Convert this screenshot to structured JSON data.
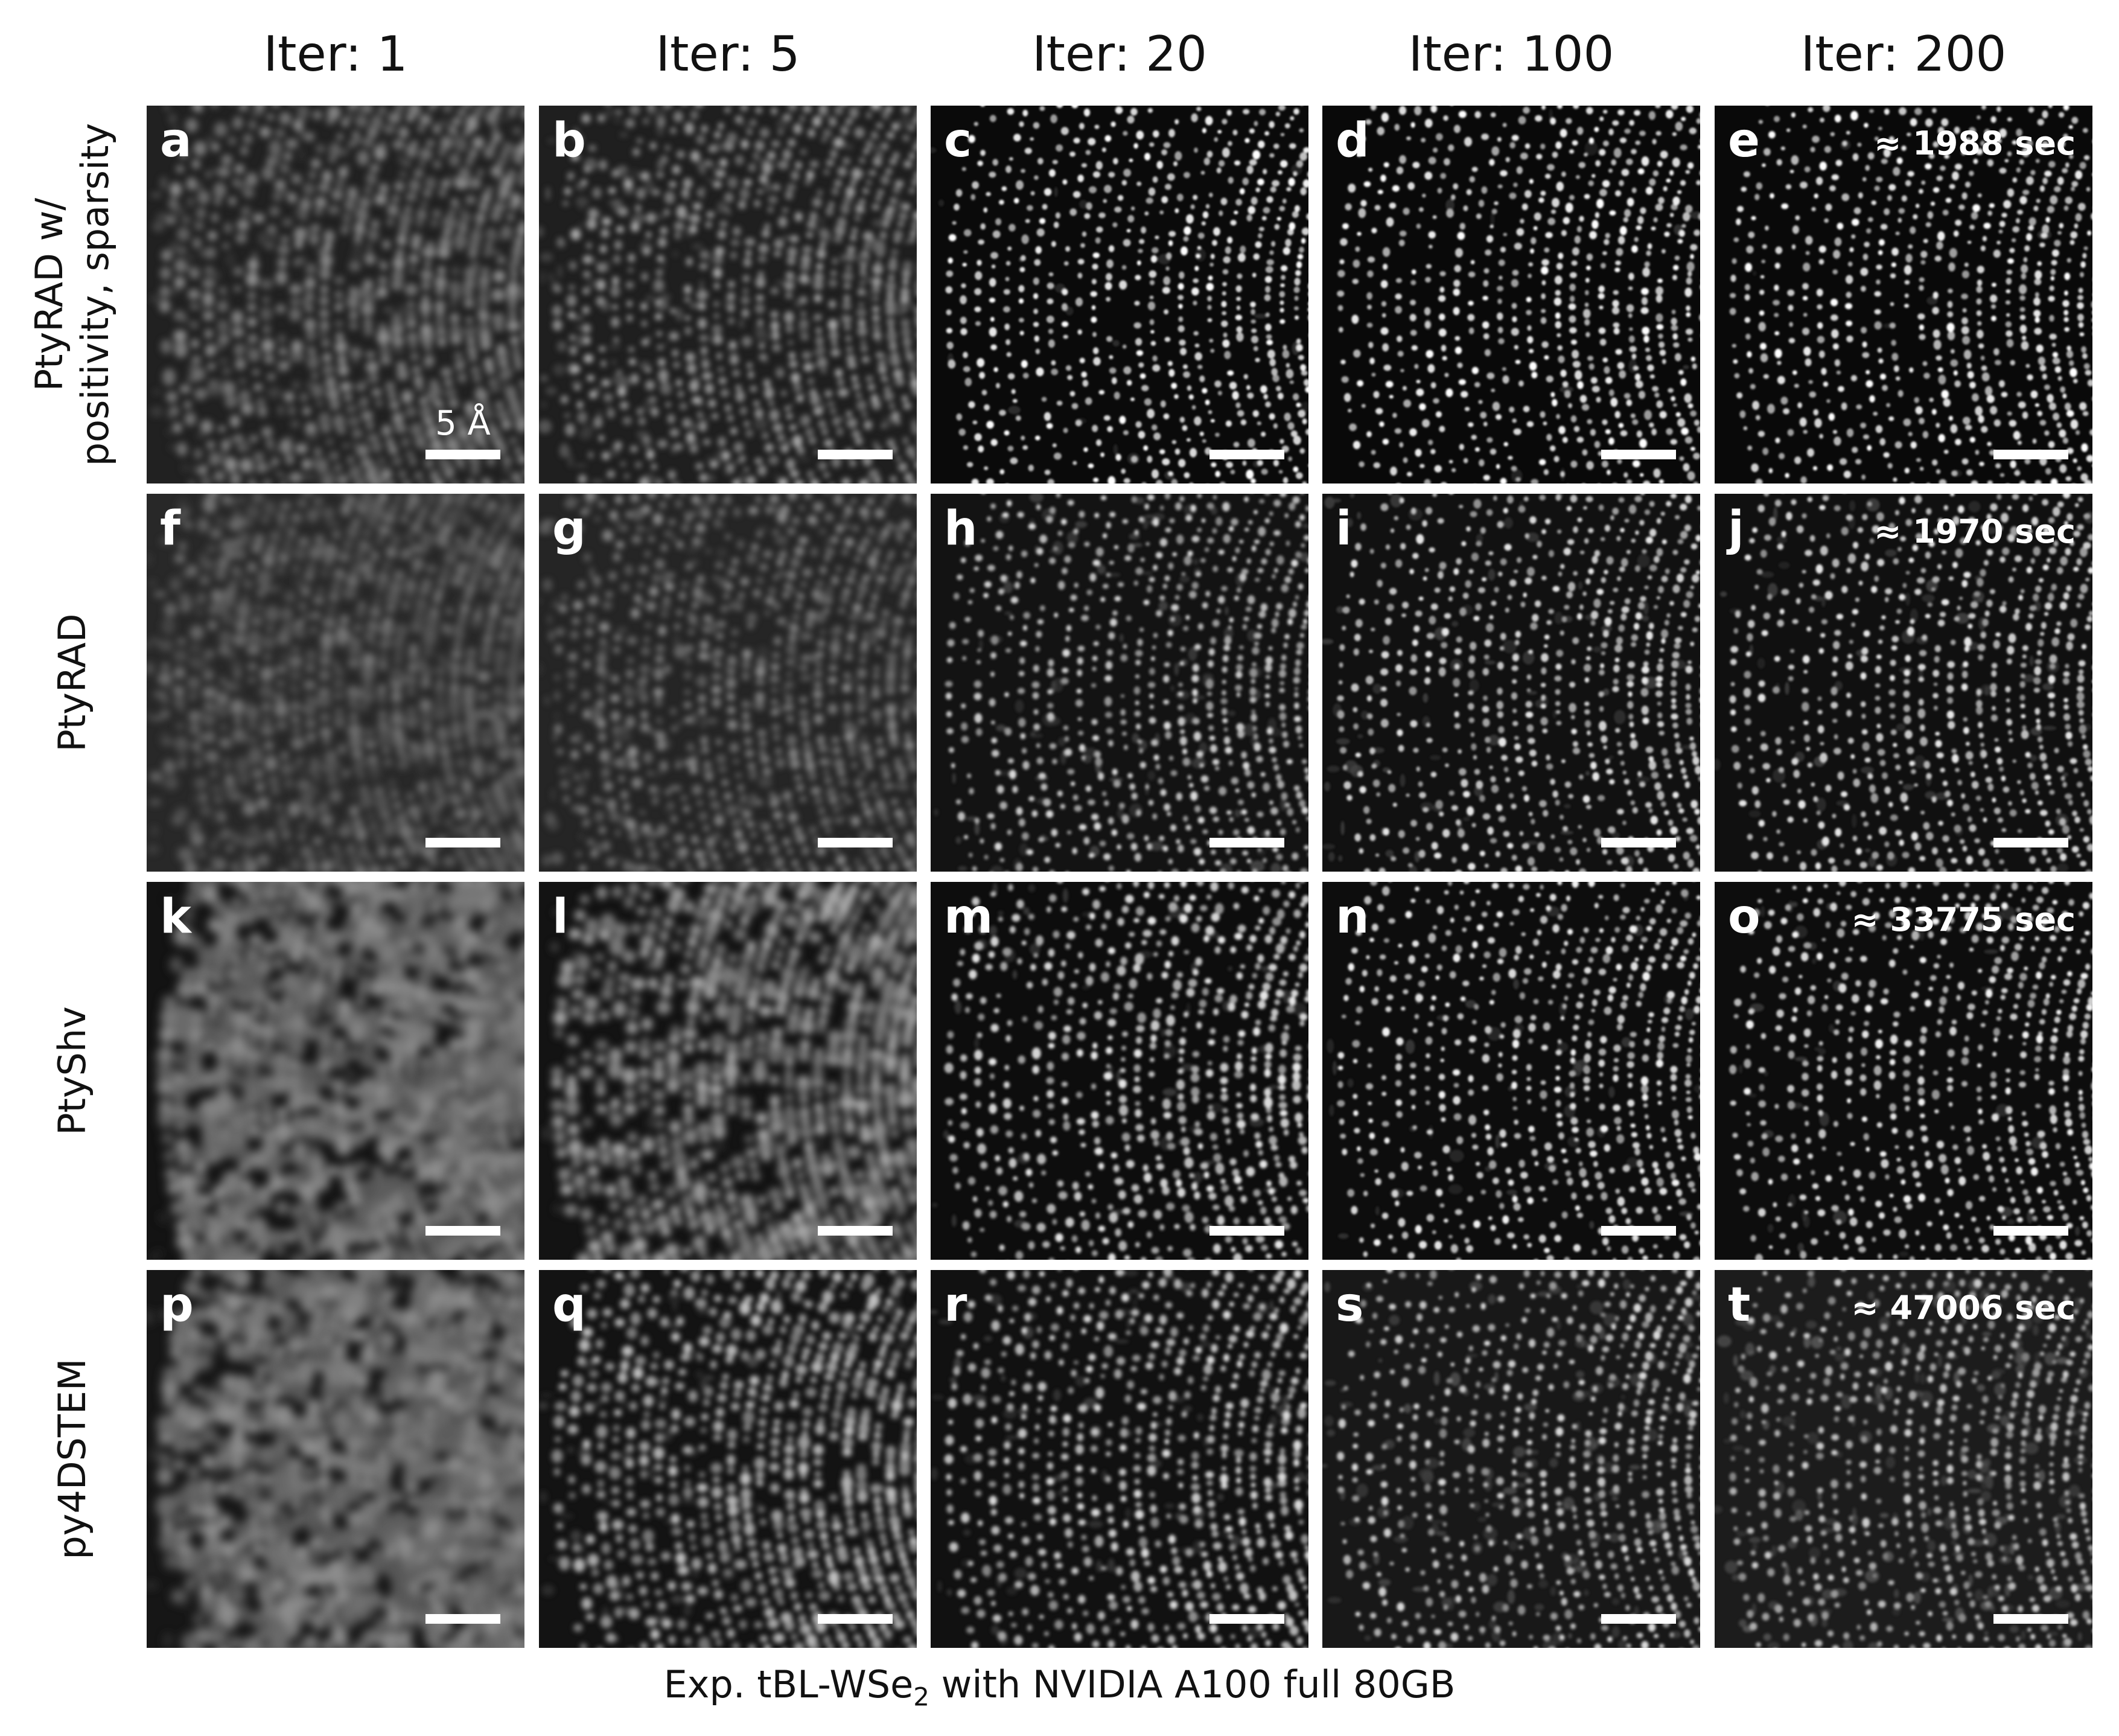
{
  "columns": [
    {
      "label": "Iter: 1"
    },
    {
      "label": "Iter: 5"
    },
    {
      "label": "Iter: 20"
    },
    {
      "label": "Iter: 100"
    },
    {
      "label": "Iter: 200"
    }
  ],
  "rows": [
    {
      "label_line1": "PtyRAD w/",
      "label_line2": "positivity, sparsity",
      "time": "≈ 1988 sec",
      "panels": [
        "a",
        "b",
        "c",
        "d",
        "e"
      ]
    },
    {
      "label_line1": "PtyRAD",
      "label_line2": "",
      "time": "≈ 1970 sec",
      "panels": [
        "f",
        "g",
        "h",
        "i",
        "j"
      ]
    },
    {
      "label_line1": "PtyShv",
      "label_line2": "",
      "time": "≈ 33775 sec",
      "panels": [
        "k",
        "l",
        "m",
        "n",
        "o"
      ]
    },
    {
      "label_line1": "py4DSTEM",
      "label_line2": "",
      "time": "≈ 47006 sec",
      "panels": [
        "p",
        "q",
        "r",
        "s",
        "t"
      ]
    }
  ],
  "scale_bar_label": "5 Å",
  "caption": {
    "prefix": "Exp. tBL-WSe",
    "subscript": "2",
    "suffix": " with NVIDIA A100 full 80GB"
  }
}
